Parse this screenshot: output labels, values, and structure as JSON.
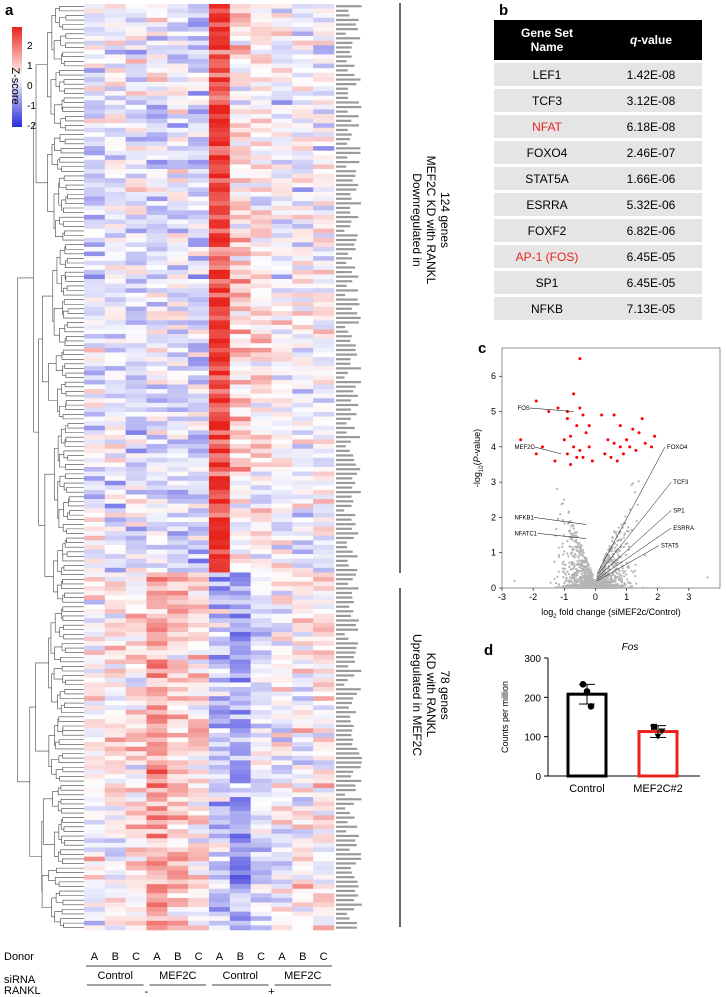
{
  "panels": {
    "a": {
      "letter": "a"
    },
    "b": {
      "letter": "b"
    },
    "c": {
      "letter": "c"
    },
    "d": {
      "letter": "d"
    }
  },
  "heatmap": {
    "colorbar": {
      "label": "Z-score",
      "ticks": [
        "2",
        "1",
        "0",
        "-1",
        "-2"
      ],
      "colors": [
        "#e8231c",
        "#ffffff",
        "#2b2bdc"
      ]
    },
    "groups": [
      {
        "label": "Downregulated in MEF2C KD with RANKL 124 genes",
        "lines": [
          "Downregulated in",
          "MEF2C KD with RANKL",
          "124 genes"
        ],
        "count": 124
      },
      {
        "label": "Upregulated in MEF2C KD with RANKL 78 genes",
        "lines": [
          "Upregulated in MEF2C",
          "KD with RANKL",
          "78 genes"
        ],
        "count": 78
      }
    ],
    "rows_total": 202,
    "columns": [
      {
        "donor": "A",
        "sirna": "Control",
        "rankl": "-"
      },
      {
        "donor": "B",
        "sirna": "Control",
        "rankl": "-"
      },
      {
        "donor": "C",
        "sirna": "Control",
        "rankl": "-"
      },
      {
        "donor": "A",
        "sirna": "MEF2C",
        "rankl": "-"
      },
      {
        "donor": "B",
        "sirna": "MEF2C",
        "rankl": "-"
      },
      {
        "donor": "C",
        "sirna": "MEF2C",
        "rankl": "-"
      },
      {
        "donor": "A",
        "sirna": "Control",
        "rankl": "+"
      },
      {
        "donor": "B",
        "sirna": "Control",
        "rankl": "+"
      },
      {
        "donor": "C",
        "sirna": "Control",
        "rankl": "+"
      },
      {
        "donor": "A",
        "sirna": "MEF2C",
        "rankl": "+"
      },
      {
        "donor": "B",
        "sirna": "MEF2C",
        "rankl": "+"
      },
      {
        "donor": "C",
        "sirna": "MEF2C",
        "rankl": "+"
      }
    ],
    "group_means": [
      [
        -0.3,
        -0.3,
        -0.3,
        -0.2,
        -0.3,
        -0.5,
        2.0,
        0.4,
        0.2,
        0.0,
        -0.1,
        -0.1
      ],
      [
        0.1,
        0.1,
        0.2,
        1.0,
        0.6,
        0.4,
        -0.6,
        -1.0,
        -0.3,
        -0.1,
        0.1,
        0.3
      ]
    ],
    "annotation_rows": {
      "donor": {
        "label": "Donor",
        "values": [
          "A",
          "B",
          "C",
          "A",
          "B",
          "C",
          "A",
          "B",
          "C",
          "A",
          "B",
          "C"
        ]
      },
      "sirna": {
        "label": "siRNA",
        "values": [
          "Control",
          "MEF2C",
          "Control",
          "MEF2C"
        ]
      },
      "rankl": {
        "label": "RANKL",
        "values": [
          "-",
          "+"
        ]
      }
    }
  },
  "table_b": {
    "headers": [
      "Gene Set\nName",
      "q-value"
    ],
    "header_name": "Gene Set Name",
    "header_q": "q",
    "header_value": "-value",
    "rows": [
      {
        "name": "LEF1",
        "q": "1.42E-08",
        "highlight": false
      },
      {
        "name": "TCF3",
        "q": "3.12E-08",
        "highlight": false
      },
      {
        "name": "NFAT",
        "q": "6.18E-08",
        "highlight": true
      },
      {
        "name": "FOXO4",
        "q": "2.46E-07",
        "highlight": false
      },
      {
        "name": "STAT5A",
        "q": "1.66E-06",
        "highlight": false
      },
      {
        "name": "ESRRA",
        "q": "5.32E-06",
        "highlight": false
      },
      {
        "name": "FOXF2",
        "q": "6.82E-06",
        "highlight": false
      },
      {
        "name": "AP-1 (FOS)",
        "q": "6.45E-05",
        "highlight": true
      },
      {
        "name": "SP1",
        "q": "6.45E-05",
        "highlight": false
      },
      {
        "name": "NFKB",
        "q": "7.13E-05",
        "highlight": false
      }
    ],
    "highlight_color": "#e8231c"
  },
  "chart_data": [
    {
      "type": "scatter",
      "title": "",
      "xlabel": "log2 fold change (siMEF2c/Control)",
      "ylabel": "-log10(P-value)",
      "xlim": [
        -3,
        4
      ],
      "ylim": [
        0,
        6.8
      ],
      "xticks": [
        "-3",
        "-2",
        "-1",
        "0",
        "1",
        "2",
        "3"
      ],
      "yticks": [
        "0",
        "1",
        "2",
        "3",
        "4",
        "5",
        "6"
      ],
      "series": [
        {
          "color": "#ff0000",
          "points": [
            [
              -1.9,
              5.3
            ],
            [
              -1.5,
              5.0
            ],
            [
              -1.2,
              5.1
            ],
            [
              -0.9,
              5.0
            ],
            [
              -0.7,
              5.5
            ],
            [
              -0.5,
              5.1
            ],
            [
              -0.4,
              4.9
            ],
            [
              -0.6,
              4.6
            ],
            [
              -0.3,
              4.4
            ],
            [
              -0.8,
              4.3
            ],
            [
              -0.2,
              4.6
            ],
            [
              -1.0,
              4.2
            ],
            [
              -0.7,
              4.0
            ],
            [
              -0.5,
              3.9
            ],
            [
              -0.4,
              3.7
            ],
            [
              -0.6,
              3.7
            ],
            [
              -0.9,
              3.8
            ],
            [
              -1.7,
              4.0
            ],
            [
              -1.9,
              3.8
            ],
            [
              -2.4,
              4.2
            ],
            [
              -1.3,
              3.6
            ],
            [
              -0.8,
              3.5
            ],
            [
              -0.2,
              4.0
            ],
            [
              -0.1,
              3.6
            ],
            [
              -0.5,
              6.5
            ],
            [
              -0.9,
              4.8
            ],
            [
              0.4,
              4.2
            ],
            [
              0.6,
              4.1
            ],
            [
              0.8,
              4.0
            ],
            [
              0.5,
              3.7
            ],
            [
              0.7,
              3.6
            ],
            [
              0.3,
              3.8
            ],
            [
              1.0,
              4.2
            ],
            [
              1.2,
              4.5
            ],
            [
              1.4,
              4.4
            ],
            [
              1.1,
              4.0
            ],
            [
              0.9,
              3.8
            ],
            [
              1.3,
              3.9
            ],
            [
              1.5,
              4.8
            ],
            [
              0.8,
              4.6
            ],
            [
              1.6,
              4.1
            ],
            [
              1.8,
              4.0
            ],
            [
              0.2,
              4.9
            ],
            [
              0.6,
              4.9
            ],
            [
              1.9,
              4.3
            ]
          ]
        },
        {
          "color": "#b4b4b4",
          "name": ""
        }
      ],
      "labels": [
        {
          "text": "FOS",
          "point": [
            -0.7,
            5.0
          ]
        },
        {
          "text": "MEF2C",
          "point": [
            -1.1,
            3.8
          ]
        },
        {
          "text": "NFKB1",
          "point": [
            -0.3,
            1.8
          ]
        },
        {
          "text": "NFATC1",
          "point": [
            -0.3,
            1.4
          ]
        },
        {
          "text": "FOXO4",
          "point": [
            0.05,
            0.4
          ]
        },
        {
          "text": "TCF3",
          "point": [
            0.05,
            0.35
          ]
        },
        {
          "text": "SP1",
          "point": [
            0.05,
            0.3
          ]
        },
        {
          "text": "ESRRA",
          "point": [
            0.05,
            0.25
          ]
        },
        {
          "text": "STAT5",
          "point": [
            0.05,
            0.2
          ]
        }
      ]
    },
    {
      "type": "bar",
      "title": "Fos",
      "ylabel": "Counts per million",
      "categories": [
        "Control",
        "MEF2C#2"
      ],
      "values": [
        208,
        113
      ],
      "errors": [
        25,
        15
      ],
      "points": [
        [
          233,
          215,
          177
        ],
        [
          125,
          100,
          113
        ]
      ],
      "colors": [
        "#000000",
        "#e8231c"
      ],
      "ylim": [
        0,
        300
      ],
      "yticks": [
        "0",
        "100",
        "200",
        "300"
      ]
    }
  ]
}
